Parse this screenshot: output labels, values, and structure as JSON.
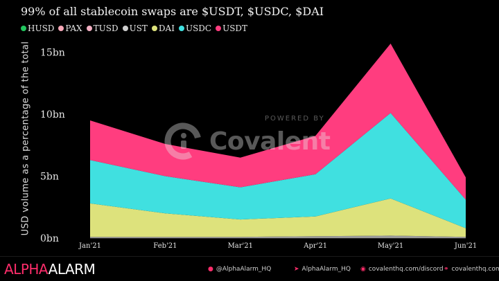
{
  "title": "99% of all stablecoin swaps are $USDT, $USDC, $DAI",
  "legend": [
    {
      "label": "HUSD",
      "color": "#22c55e"
    },
    {
      "label": "PAX",
      "color": "#f7a8b8"
    },
    {
      "label": "TUSD",
      "color": "#f3b0c3"
    },
    {
      "label": "UST",
      "color": "#cfcfcf"
    },
    {
      "label": "DAI",
      "color": "#dde27c"
    },
    {
      "label": "USDC",
      "color": "#40e0e0"
    },
    {
      "label": "USDT",
      "color": "#ff3d7f"
    }
  ],
  "watermark": {
    "powered": "POWERED BY",
    "name": "Covalent"
  },
  "footer": {
    "brand_a": "ALPHA",
    "brand_b": "ALARM",
    "twitter": "@AlphaAlarm_HQ",
    "telegram": "AlphaAlarm_HQ",
    "discord": "covalenthq.com/discord",
    "website": "covalenthq.com"
  },
  "chart_data": {
    "type": "area",
    "stacked": true,
    "title": "99% of all stablecoin swaps are $USDT, $USDC, $DAI",
    "ylabel": "USD volume as a percentage of the total",
    "xlabel": "",
    "categories": [
      "Jan'21",
      "Feb'21",
      "Mar'21",
      "Apr'21",
      "May'21",
      "Jun'21"
    ],
    "yticks": [
      "0bn",
      "5bn",
      "10bn",
      "15bn"
    ],
    "ytick_values": [
      0,
      5,
      10,
      15
    ],
    "ylim": [
      0,
      15.5
    ],
    "grid": false,
    "legend_position": "top-left",
    "series": [
      {
        "name": "HUSD",
        "color": "#22c55e",
        "values": [
          0,
          0,
          0,
          0,
          0,
          0
        ]
      },
      {
        "name": "PAX",
        "color": "#f7a8b8",
        "values": [
          0,
          0,
          0,
          0,
          0,
          0
        ]
      },
      {
        "name": "TUSD",
        "color": "#f3b0c3",
        "values": [
          0,
          0,
          0,
          0,
          0,
          0
        ]
      },
      {
        "name": "UST",
        "color": "#9a9a9a",
        "values": [
          0.1,
          0.1,
          0.1,
          0.15,
          0.2,
          0.1
        ]
      },
      {
        "name": "DAI",
        "color": "#dde27c",
        "values": [
          2.7,
          1.9,
          1.4,
          1.6,
          3.0,
          0.7
        ]
      },
      {
        "name": "USDC",
        "color": "#40e0e0",
        "values": [
          3.5,
          3.0,
          2.6,
          3.4,
          6.9,
          2.3
        ]
      },
      {
        "name": "USDT",
        "color": "#ff3d7f",
        "values": [
          3.2,
          2.6,
          2.4,
          3.1,
          5.6,
          1.8
        ]
      }
    ]
  }
}
